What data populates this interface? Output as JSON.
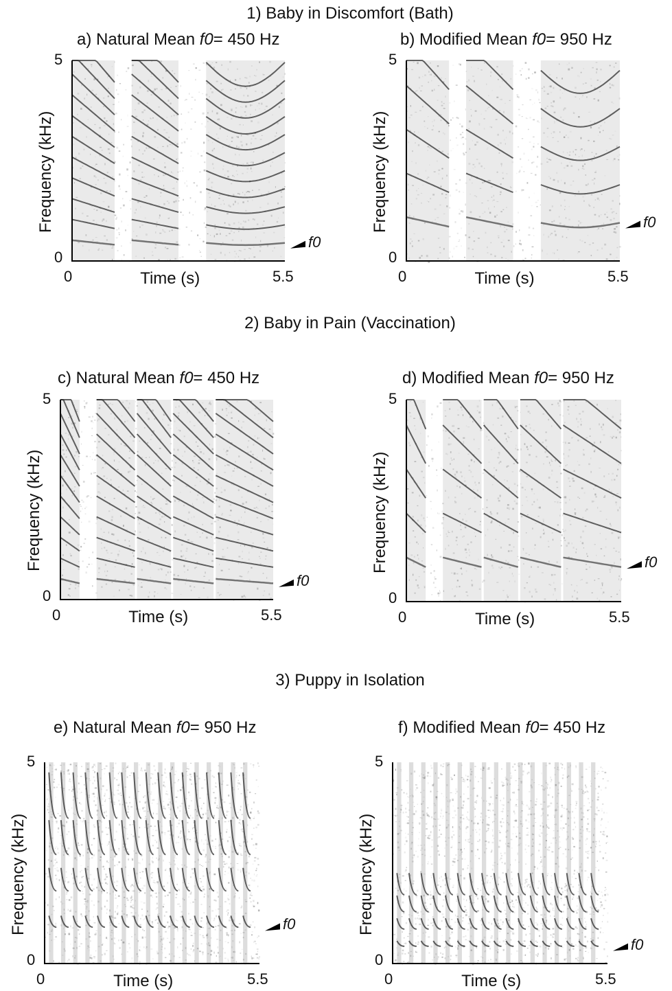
{
  "sections": [
    {
      "title": "1) Baby in Discomfort (Bath)"
    },
    {
      "title": "2) Baby in Pain (Vaccination)"
    },
    {
      "title": "3) Puppy in Isolation"
    }
  ],
  "chart_data": [
    {
      "type": "spectrogram",
      "panel": "a",
      "title_prefix": "a) Natural Mean ",
      "title_var": "f0",
      "title_suffix": "= 450 Hz",
      "xlabel": "Time (s)",
      "ylabel": "Frequency (kHz)",
      "xlim": [
        0,
        5.5
      ],
      "ylim": [
        0,
        5
      ],
      "x_ticks": [
        "0",
        "5.5"
      ],
      "y_ticks": [
        "0",
        "5"
      ],
      "annotation": "f0",
      "mean_f0_hz": 450,
      "condition": "Natural"
    },
    {
      "type": "spectrogram",
      "panel": "b",
      "title_prefix": "b) Modified Mean ",
      "title_var": "f0",
      "title_suffix": "= 950 Hz",
      "xlabel": "Time (s)",
      "ylabel": "Frequency (kHz)",
      "xlim": [
        0,
        5.5
      ],
      "ylim": [
        0,
        5
      ],
      "x_ticks": [
        "0",
        "5.5"
      ],
      "y_ticks": [
        "0",
        "5"
      ],
      "annotation": "f0",
      "mean_f0_hz": 950,
      "condition": "Modified"
    },
    {
      "type": "spectrogram",
      "panel": "c",
      "title_prefix": "c) Natural Mean ",
      "title_var": "f0",
      "title_suffix": "= 450 Hz",
      "xlabel": "Time (s)",
      "ylabel": "Frequency (kHz)",
      "xlim": [
        0,
        5.5
      ],
      "ylim": [
        0,
        5
      ],
      "x_ticks": [
        "0",
        "5.5"
      ],
      "y_ticks": [
        "0",
        "5"
      ],
      "annotation": "f0",
      "mean_f0_hz": 450,
      "condition": "Natural"
    },
    {
      "type": "spectrogram",
      "panel": "d",
      "title_prefix": "d) Modified Mean ",
      "title_var": "f0",
      "title_suffix": "= 950 Hz",
      "xlabel": "Time (s)",
      "ylabel": "Frequency (kHz)",
      "xlim": [
        0,
        5.5
      ],
      "ylim": [
        0,
        5
      ],
      "x_ticks": [
        "0",
        "5.5"
      ],
      "y_ticks": [
        "0",
        "5"
      ],
      "annotation": "f0",
      "mean_f0_hz": 950,
      "condition": "Modified"
    },
    {
      "type": "spectrogram",
      "panel": "e",
      "title_prefix": "e) Natural Mean ",
      "title_var": "f0",
      "title_suffix": "= 950 Hz",
      "xlabel": "Time (s)",
      "ylabel": "Frequency (kHz)",
      "xlim": [
        0,
        5.5
      ],
      "ylim": [
        0,
        5
      ],
      "x_ticks": [
        "0",
        "5.5"
      ],
      "y_ticks": [
        "0",
        "5"
      ],
      "annotation": "f0",
      "mean_f0_hz": 950,
      "condition": "Natural"
    },
    {
      "type": "spectrogram",
      "panel": "f",
      "title_prefix": "f) Modified Mean ",
      "title_var": "f0",
      "title_suffix": "= 450 Hz",
      "xlabel": "Time (s)",
      "ylabel": "Frequency (kHz)",
      "xlim": [
        0,
        5.5
      ],
      "ylim": [
        0,
        5
      ],
      "x_ticks": [
        "0",
        "5.5"
      ],
      "y_ticks": [
        "0",
        "5"
      ],
      "annotation": "f0",
      "mean_f0_hz": 450,
      "condition": "Modified"
    }
  ]
}
